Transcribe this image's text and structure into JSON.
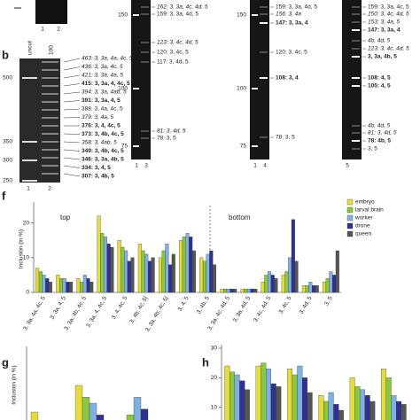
{
  "panel_a": {
    "lanes": [
      "1",
      "2"
    ]
  },
  "panel_b": {
    "letter": "b",
    "lanes_top": [
      "uncut",
      "100"
    ],
    "lanes": [
      "1",
      "2"
    ],
    "markers": [
      500,
      350,
      300,
      250
    ],
    "bands": [
      {
        "text": "463: 3, 3a, 4a, 4c, 5",
        "style": "italic"
      },
      {
        "text": "436: 3, 3a, 4c, 5",
        "style": "italic"
      },
      {
        "text": "421: 3, 3a, 4a, 5",
        "style": "italic"
      },
      {
        "text": "415: 3, 3a, 4, 4c, 5",
        "style": "bold"
      },
      {
        "text": "394: 3, 3a, 4ab, 5",
        "style": "italic"
      },
      {
        "text": "391: 3, 3a, 4, 5",
        "style": "bold"
      },
      {
        "text": "388: 3, 4a, 4c, 5",
        "style": "normal"
      },
      {
        "text": "379: 3, 4a, 5",
        "style": "italic"
      },
      {
        "text": "376: 3, 4, 4c, 5",
        "style": "bold"
      },
      {
        "text": "373: 3, 4b, 4c, 5",
        "style": "bold"
      },
      {
        "text": "358: 3, 4ab, 5",
        "style": "italic"
      },
      {
        "text": "349: 3, 4b, 4c, 5",
        "style": "bold"
      },
      {
        "text": "346: 3, 3a, 4b, 5",
        "style": "bold"
      },
      {
        "text": "334: 3, 4, 5",
        "style": "bold"
      },
      {
        "text": "307: 3, 4b, 5",
        "style": "bold"
      }
    ]
  },
  "gels": [
    {
      "markers": [
        150,
        100,
        75
      ],
      "lanes": [
        "1",
        "3"
      ],
      "bands": [
        {
          "text": "162: 3, 3a, 4c, 4d, 5",
          "style": "italic"
        },
        {
          "text": "159: 3, 3a, 4d, 5",
          "style": "normal"
        },
        {
          "text": "123: 3, 4c, 4d, 5",
          "style": "italic"
        },
        {
          "text": "120: 3, 4c, 5",
          "style": "normal"
        },
        {
          "text": "117: 3, 4d, 5",
          "style": "normal"
        },
        {
          "text": "81: 3, 4d, 5",
          "style": "italic"
        },
        {
          "text": "78: 3, 5",
          "style": "normal"
        }
      ]
    },
    {
      "markers": [
        150,
        100,
        75
      ],
      "lanes": [
        "1",
        "4"
      ],
      "bands": [
        {
          "text": "159: 3, 3a, 4d, 5",
          "style": "normal"
        },
        {
          "text": "156: 3, 4a",
          "style": "italic"
        },
        {
          "text": "147: 3, 3a, 4",
          "style": "bold"
        },
        {
          "text": "120: 3, 4c, 5",
          "style": "normal"
        },
        {
          "text": "108: 3, 4",
          "style": "bold"
        },
        {
          "text": "78: 3, 5",
          "style": "normal"
        }
      ]
    },
    {
      "markers": [],
      "lanes": [
        "5"
      ],
      "bands": [
        {
          "text": "159: 3, 3a, 4c, 5",
          "style": "normal"
        },
        {
          "text": "150: 3, 4c, 4d, 5",
          "style": "italic"
        },
        {
          "text": "153: 3, 4a, 5",
          "style": "italic"
        },
        {
          "text": "147: 3, 3a, 4",
          "style": "bold"
        },
        {
          "text": "4b, 4d, 5",
          "style": "italic"
        },
        {
          "text": "123: 3, 4c, 4d, 5",
          "style": "italic"
        },
        {
          "text": "3, 3a, 4b, 5",
          "style": "bold"
        },
        {
          "text": "108: 4, 5",
          "style": "bold"
        },
        {
          "text": "105: 4, 5",
          "style": "bold"
        },
        {
          "text": "4b, 4d, 5",
          "style": "italic"
        },
        {
          "text": "81: 3, 4d, 5",
          "style": "italic"
        },
        {
          "text": "78: 4b, 5",
          "style": "bold"
        },
        {
          "text": "3, 5",
          "style": "normal"
        }
      ]
    }
  ],
  "chart_data": [
    {
      "type": "bar",
      "label": "f",
      "y_label": "Inclusion (in %)",
      "annotations": [
        "top",
        "bottom"
      ],
      "categories": [
        "3, 3a, 4a, 4c, 5",
        "3, 3a, 4, 5",
        "3, 3a, 4b, 4c, 5",
        "3, 3a, 4, 4c, 5",
        "3, 4, 4c, 5",
        "3, 4b, 4c, 5|",
        "3, 3a, 4b, 4c, 5|",
        "3, 4, 5",
        "3, 4b, 5",
        "3, 3a, 4c, 4d, 5",
        "3, 3a, 4d, 5",
        "3, 4c, 4d, 5",
        "3, 4c, 5",
        "3, 4d, 5",
        "3, 5"
      ],
      "ylim": [
        0,
        25
      ],
      "yticks": [
        0,
        10,
        20
      ],
      "series": [
        {
          "name": "embryo",
          "color": "#e3dc3c",
          "values": [
            7,
            5,
            4,
            22,
            15,
            14,
            10,
            15,
            10,
            1,
            1,
            3,
            5,
            2,
            3
          ]
        },
        {
          "name": "larval brain",
          "color": "#8dc63f",
          "values": [
            6,
            4,
            3,
            17,
            13,
            12,
            12,
            16,
            9,
            1,
            1,
            5,
            6,
            2,
            4
          ]
        },
        {
          "name": "worker",
          "color": "#7eb0e0",
          "values": [
            5,
            4,
            5,
            16,
            12,
            11,
            14,
            17,
            11,
            1,
            1,
            6,
            10,
            3,
            6
          ]
        },
        {
          "name": "drone",
          "color": "#2e3192",
          "values": [
            4,
            3,
            4,
            14,
            9,
            9,
            8,
            16,
            12,
            1,
            1,
            5,
            21,
            2,
            5
          ]
        },
        {
          "name": "queen",
          "color": "#555555",
          "values": [
            3,
            3,
            3,
            13,
            10,
            10,
            11,
            12,
            8,
            1,
            1,
            4,
            9,
            2,
            12
          ]
        }
      ]
    },
    {
      "type": "bar",
      "label": "g",
      "y_label": "Inclusion (in %)",
      "categories": [
        null,
        null,
        null
      ],
      "ylim": [
        0,
        30
      ],
      "yticks": [],
      "series": [
        {
          "name": "embryo",
          "color": "#e3dc3c",
          "values": [
            9,
            18,
            6
          ]
        },
        {
          "name": "larval brain",
          "color": "#8dc63f",
          "values": [
            4,
            14,
            8
          ]
        },
        {
          "name": "worker",
          "color": "#7eb0e0",
          "values": [
            3,
            12,
            14
          ]
        },
        {
          "name": "drone",
          "color": "#2e3192",
          "values": [
            2,
            8,
            10
          ]
        },
        {
          "name": "queen",
          "color": "#555555",
          "values": [
            2,
            6,
            6
          ]
        }
      ]
    },
    {
      "type": "bar",
      "label": "h",
      "categories": [
        null,
        null,
        null,
        null,
        null,
        null
      ],
      "ylim": [
        0,
        30
      ],
      "yticks": [
        10,
        20,
        30
      ],
      "series": [
        {
          "name": "embryo",
          "color": "#e3dc3c",
          "values": [
            24,
            24,
            23,
            14,
            20,
            23
          ]
        },
        {
          "name": "larval brain",
          "color": "#8dc63f",
          "values": [
            22,
            25,
            21,
            12,
            17,
            20
          ]
        },
        {
          "name": "worker",
          "color": "#7eb0e0",
          "values": [
            21,
            23,
            24,
            15,
            16,
            14
          ]
        },
        {
          "name": "drone",
          "color": "#2e3192",
          "values": [
            19,
            18,
            20,
            11,
            14,
            12
          ]
        },
        {
          "name": "queen",
          "color": "#555555",
          "values": [
            16,
            17,
            15,
            9,
            12,
            11
          ]
        }
      ]
    }
  ]
}
